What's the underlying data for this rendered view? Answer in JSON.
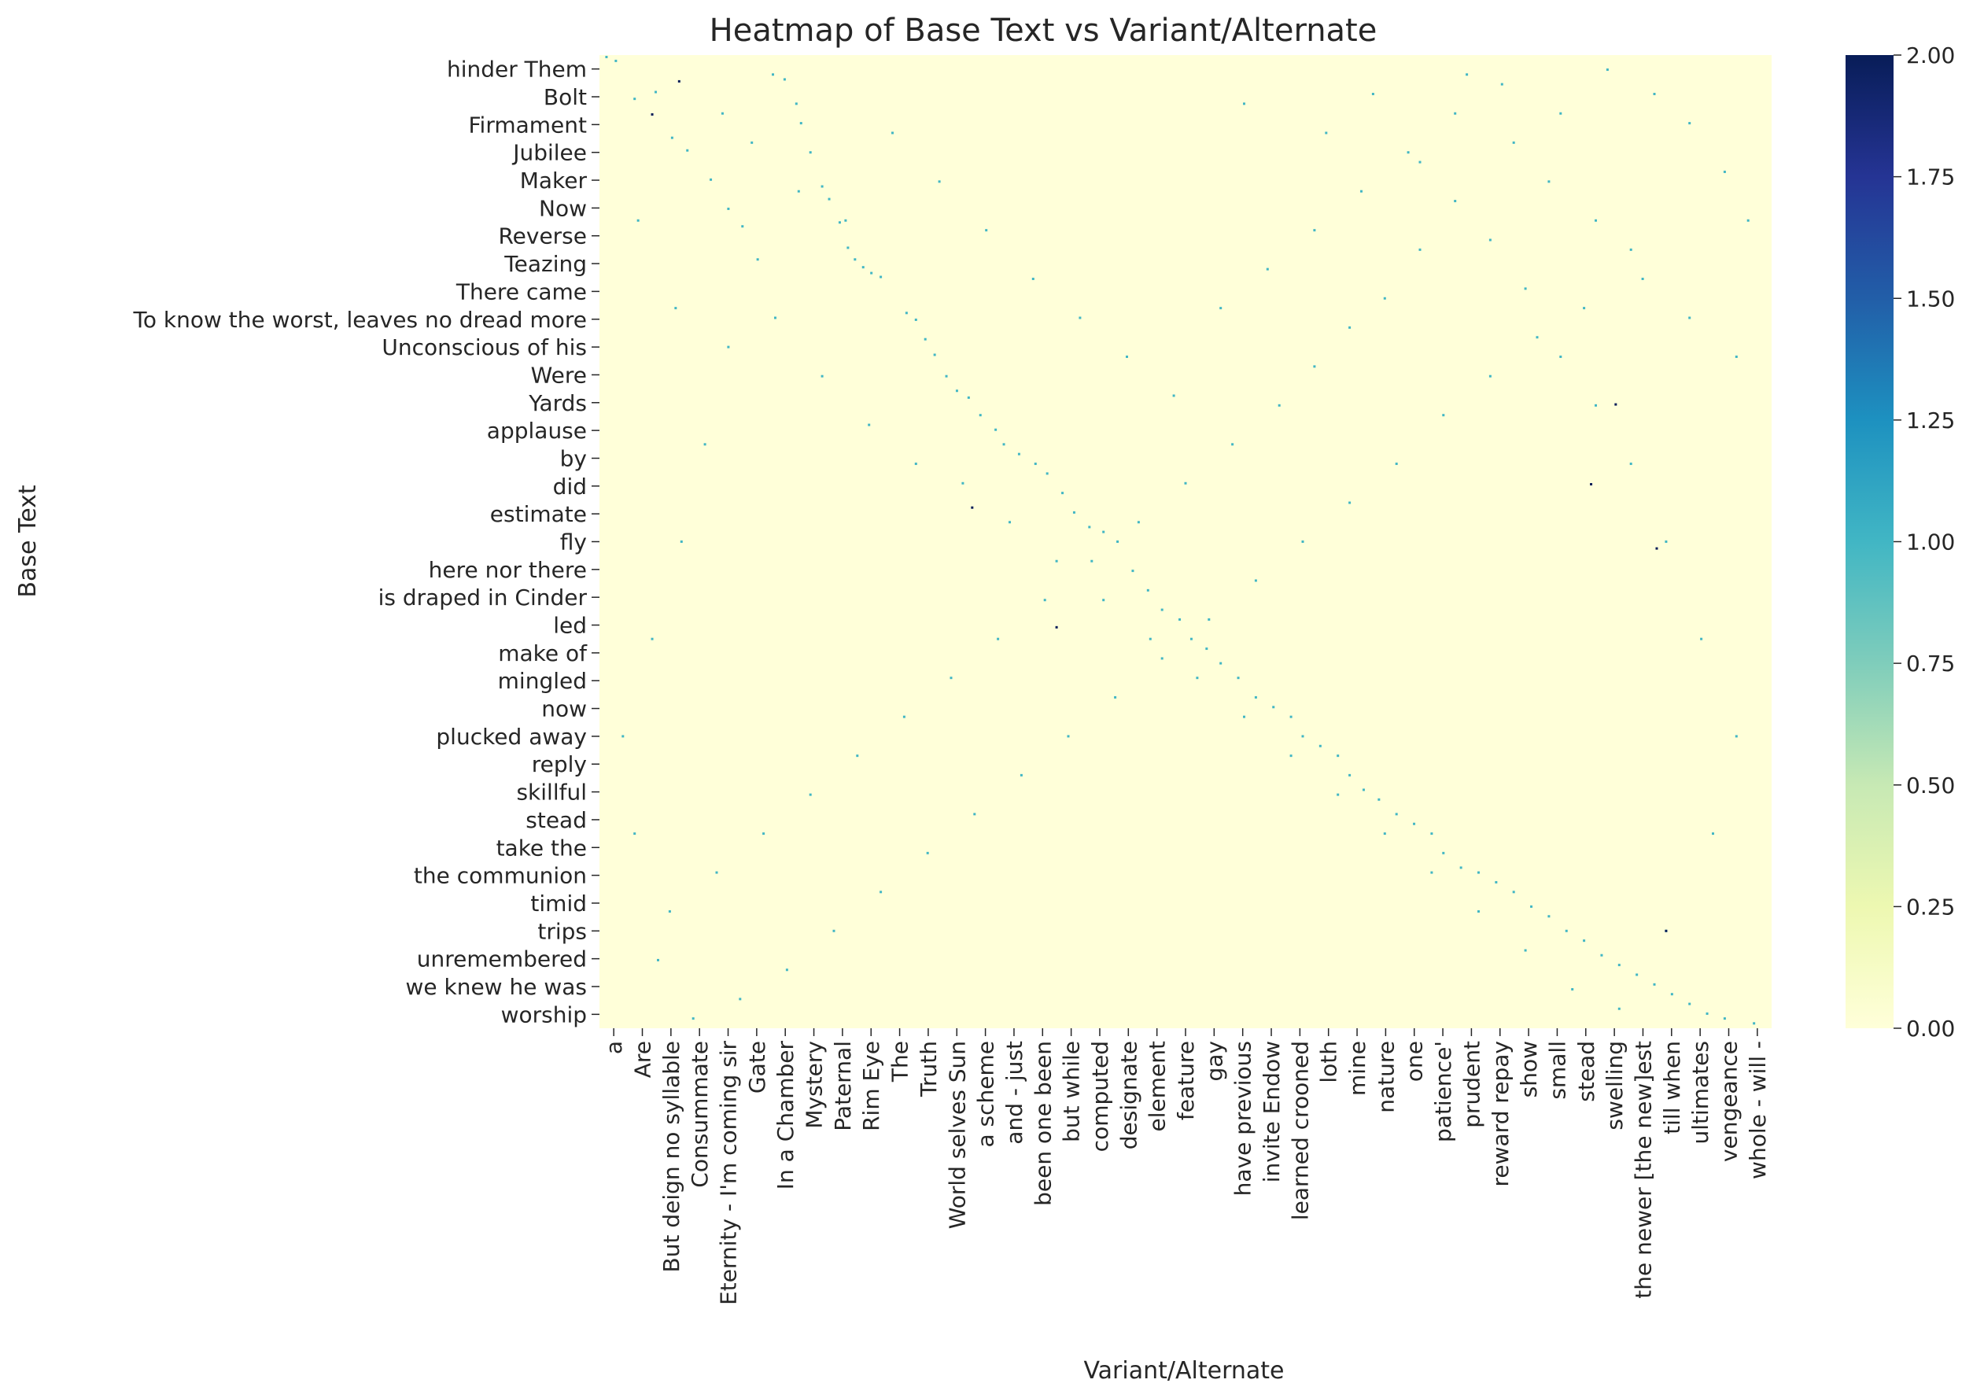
{
  "chart_data": {
    "type": "heatmap",
    "title": "Heatmap of Base Text vs Variant/Alternate",
    "xlabel": "Variant/Alternate",
    "ylabel": "Base Text",
    "y_tick_labels": [
      "hinder Them",
      "Bolt",
      "Firmament",
      "Jubilee",
      "Maker",
      "Now",
      "Reverse",
      "Teazing",
      "There came",
      "To know the worst, leaves no dread more",
      "Unconscious of his",
      "Were",
      "Yards",
      "applause ",
      "by",
      "did",
      "estimate",
      "fly",
      "here nor there",
      "is draped in Cinder",
      "led",
      "make of",
      "mingled",
      "now",
      "plucked away",
      "reply",
      "skillful",
      "stead",
      "take the",
      "the communion",
      "timid",
      "trips",
      "unremembered",
      "we knew he was",
      "worship"
    ],
    "x_tick_labels": [
      "a",
      "Are",
      "But deign no syllable",
      "Consummate",
      "Eternity - I'm coming sir",
      "Gate",
      "In a Chamber",
      "Mystery",
      "Paternal",
      "Rim Eye",
      "The",
      "Truth",
      "World selves Sun",
      "a scheme",
      "and - just",
      "been one been",
      "but while",
      "computed",
      "designate",
      "element",
      "feature",
      "gay",
      "have previous",
      "invite Endow",
      "learned crooned",
      "loth",
      "mine",
      "nature",
      "one",
      "patience'",
      "prudent",
      "reward repay",
      "show",
      "small",
      "stead",
      "swelling",
      "the newer [the new]est",
      "till when",
      "ultimates",
      "vengeance",
      "whole - will -"
    ],
    "colorbar": {
      "cmap": "YlGnBu",
      "range": [
        0,
        2
      ],
      "ticks": [
        "0.00",
        "0.25",
        "0.50",
        "0.75",
        "1.00",
        "1.25",
        "1.50",
        "1.75",
        "2.00"
      ]
    },
    "value_range": [
      0,
      2
    ],
    "grid": false,
    "background_value": 0,
    "cells_note": "sparse matrix: nearly all cells 0; scattered cells of value 1, a few of value 2",
    "cells": [
      [
        0.006,
        0.002,
        1
      ],
      [
        0.014,
        0.006,
        1
      ],
      [
        0.03,
        0.045,
        1
      ],
      [
        0.048,
        0.038,
        1
      ],
      [
        0.062,
        0.085,
        1
      ],
      [
        0.075,
        0.098,
        1
      ],
      [
        0.095,
        0.128,
        1
      ],
      [
        0.105,
        0.06,
        1
      ],
      [
        0.11,
        0.158,
        1
      ],
      [
        0.122,
        0.176,
        1
      ],
      [
        0.135,
        0.21,
        1
      ],
      [
        0.148,
        0.02,
        1
      ],
      [
        0.158,
        0.025,
        1
      ],
      [
        0.168,
        0.05,
        1
      ],
      [
        0.172,
        0.07,
        1
      ],
      [
        0.18,
        0.1,
        1
      ],
      [
        0.19,
        0.135,
        1
      ],
      [
        0.196,
        0.148,
        1
      ],
      [
        0.205,
        0.172,
        1
      ],
      [
        0.212,
        0.198,
        1
      ],
      [
        0.218,
        0.21,
        1
      ],
      [
        0.225,
        0.218,
        1
      ],
      [
        0.232,
        0.224,
        1
      ],
      [
        0.24,
        0.228,
        1
      ],
      [
        0.262,
        0.265,
        1
      ],
      [
        0.27,
        0.272,
        1
      ],
      [
        0.278,
        0.292,
        1
      ],
      [
        0.286,
        0.308,
        1
      ],
      [
        0.296,
        0.33,
        1
      ],
      [
        0.305,
        0.345,
        1
      ],
      [
        0.315,
        0.352,
        1
      ],
      [
        0.325,
        0.37,
        1
      ],
      [
        0.338,
        0.385,
        1
      ],
      [
        0.345,
        0.4,
        1
      ],
      [
        0.358,
        0.41,
        1
      ],
      [
        0.372,
        0.42,
        1
      ],
      [
        0.382,
        0.43,
        1
      ],
      [
        0.395,
        0.45,
        1
      ],
      [
        0.405,
        0.47,
        1
      ],
      [
        0.418,
        0.485,
        1
      ],
      [
        0.43,
        0.49,
        1
      ],
      [
        0.442,
        0.5,
        1
      ],
      [
        0.455,
        0.53,
        1
      ],
      [
        0.468,
        0.55,
        1
      ],
      [
        0.48,
        0.57,
        1
      ],
      [
        0.495,
        0.58,
        1
      ],
      [
        0.505,
        0.6,
        1
      ],
      [
        0.518,
        0.61,
        1
      ],
      [
        0.53,
        0.625,
        1
      ],
      [
        0.545,
        0.64,
        1
      ],
      [
        0.56,
        0.66,
        1
      ],
      [
        0.575,
        0.67,
        1
      ],
      [
        0.59,
        0.68,
        1
      ],
      [
        0.6,
        0.7,
        1
      ],
      [
        0.615,
        0.71,
        1
      ],
      [
        0.63,
        0.72,
        1
      ],
      [
        0.64,
        0.74,
        1
      ],
      [
        0.652,
        0.755,
        1
      ],
      [
        0.665,
        0.765,
        1
      ],
      [
        0.68,
        0.78,
        1
      ],
      [
        0.695,
        0.79,
        1
      ],
      [
        0.71,
        0.8,
        1
      ],
      [
        0.72,
        0.82,
        1
      ],
      [
        0.735,
        0.835,
        1
      ],
      [
        0.75,
        0.84,
        1
      ],
      [
        0.765,
        0.85,
        1
      ],
      [
        0.78,
        0.86,
        1
      ],
      [
        0.795,
        0.875,
        1
      ],
      [
        0.81,
        0.885,
        1
      ],
      [
        0.825,
        0.9,
        1
      ],
      [
        0.84,
        0.91,
        1
      ],
      [
        0.855,
        0.925,
        1
      ],
      [
        0.87,
        0.935,
        1
      ],
      [
        0.885,
        0.945,
        1
      ],
      [
        0.9,
        0.955,
        1
      ],
      [
        0.915,
        0.965,
        1
      ],
      [
        0.93,
        0.975,
        1
      ],
      [
        0.945,
        0.985,
        1
      ],
      [
        0.96,
        0.99,
        1
      ],
      [
        0.985,
        0.995,
        1
      ],
      [
        0.55,
        0.05,
        1
      ],
      [
        0.62,
        0.08,
        1
      ],
      [
        0.66,
        0.04,
        1
      ],
      [
        0.7,
        0.11,
        1
      ],
      [
        0.74,
        0.02,
        1
      ],
      [
        0.78,
        0.09,
        1
      ],
      [
        0.82,
        0.06,
        1
      ],
      [
        0.86,
        0.015,
        1
      ],
      [
        0.9,
        0.04,
        1
      ],
      [
        0.93,
        0.07,
        1
      ],
      [
        0.96,
        0.12,
        1
      ],
      [
        0.98,
        0.17,
        1
      ],
      [
        0.88,
        0.2,
        1
      ],
      [
        0.84,
        0.26,
        1
      ],
      [
        0.8,
        0.29,
        1
      ],
      [
        0.76,
        0.33,
        1
      ],
      [
        0.72,
        0.37,
        1
      ],
      [
        0.68,
        0.42,
        1
      ],
      [
        0.64,
        0.46,
        1
      ],
      [
        0.6,
        0.5,
        1
      ],
      [
        0.56,
        0.54,
        1
      ],
      [
        0.52,
        0.58,
        1
      ],
      [
        0.48,
        0.62,
        1
      ],
      [
        0.44,
        0.66,
        1
      ],
      [
        0.4,
        0.7,
        1
      ],
      [
        0.36,
        0.74,
        1
      ],
      [
        0.32,
        0.78,
        1
      ],
      [
        0.28,
        0.82,
        1
      ],
      [
        0.24,
        0.86,
        1
      ],
      [
        0.2,
        0.9,
        1
      ],
      [
        0.16,
        0.94,
        1
      ],
      [
        0.12,
        0.97,
        1
      ],
      [
        0.08,
        0.99,
        1
      ],
      [
        0.05,
        0.93,
        1
      ],
      [
        0.03,
        0.8,
        1
      ],
      [
        0.02,
        0.7,
        1
      ],
      [
        0.045,
        0.6,
        1
      ],
      [
        0.07,
        0.5,
        1
      ],
      [
        0.09,
        0.4,
        1
      ],
      [
        0.11,
        0.3,
        1
      ],
      [
        0.15,
        0.27,
        1
      ],
      [
        0.19,
        0.33,
        1
      ],
      [
        0.23,
        0.38,
        1
      ],
      [
        0.27,
        0.42,
        1
      ],
      [
        0.31,
        0.44,
        1
      ],
      [
        0.35,
        0.48,
        1
      ],
      [
        0.39,
        0.52,
        1
      ],
      [
        0.43,
        0.56,
        1
      ],
      [
        0.47,
        0.6,
        1
      ],
      [
        0.51,
        0.64,
        1
      ],
      [
        0.55,
        0.68,
        1
      ],
      [
        0.59,
        0.72,
        1
      ],
      [
        0.63,
        0.76,
        1
      ],
      [
        0.67,
        0.8,
        1
      ],
      [
        0.71,
        0.84,
        1
      ],
      [
        0.75,
        0.88,
        1
      ],
      [
        0.79,
        0.92,
        1
      ],
      [
        0.83,
        0.96,
        1
      ],
      [
        0.87,
        0.98,
        1
      ],
      [
        0.91,
        0.9,
        1
      ],
      [
        0.95,
        0.8,
        1
      ],
      [
        0.97,
        0.7,
        1
      ],
      [
        0.94,
        0.6,
        1
      ],
      [
        0.91,
        0.5,
        1
      ],
      [
        0.88,
        0.42,
        1
      ],
      [
        0.85,
        0.36,
        1
      ],
      [
        0.82,
        0.31,
        1
      ],
      [
        0.79,
        0.24,
        1
      ],
      [
        0.76,
        0.19,
        1
      ],
      [
        0.73,
        0.15,
        1
      ],
      [
        0.7,
        0.2,
        1
      ],
      [
        0.67,
        0.25,
        1
      ],
      [
        0.64,
        0.28,
        1
      ],
      [
        0.61,
        0.32,
        1
      ],
      [
        0.58,
        0.36,
        1
      ],
      [
        0.54,
        0.4,
        1
      ],
      [
        0.5,
        0.44,
        1
      ],
      [
        0.46,
        0.48,
        1
      ],
      [
        0.42,
        0.52,
        1
      ],
      [
        0.38,
        0.56,
        1
      ],
      [
        0.34,
        0.6,
        1
      ],
      [
        0.3,
        0.64,
        1
      ],
      [
        0.26,
        0.68,
        1
      ],
      [
        0.22,
        0.72,
        1
      ],
      [
        0.18,
        0.76,
        1
      ],
      [
        0.14,
        0.8,
        1
      ],
      [
        0.1,
        0.84,
        1
      ],
      [
        0.06,
        0.88,
        1
      ],
      [
        0.033,
        0.17,
        1
      ],
      [
        0.065,
        0.26,
        1
      ],
      [
        0.13,
        0.09,
        1
      ],
      [
        0.17,
        0.14,
        1
      ],
      [
        0.21,
        0.17,
        1
      ],
      [
        0.25,
        0.08,
        1
      ],
      [
        0.29,
        0.13,
        1
      ],
      [
        0.33,
        0.18,
        1
      ],
      [
        0.37,
        0.23,
        1
      ],
      [
        0.41,
        0.27,
        1
      ],
      [
        0.45,
        0.31,
        1
      ],
      [
        0.49,
        0.35,
        1
      ],
      [
        0.53,
        0.26,
        1
      ],
      [
        0.57,
        0.22,
        1
      ],
      [
        0.61,
        0.18,
        1
      ],
      [
        0.65,
        0.14,
        1
      ],
      [
        0.69,
        0.1,
        1
      ],
      [
        0.73,
        0.06,
        1
      ],
      [
        0.77,
        0.03,
        1
      ],
      [
        0.81,
        0.13,
        1
      ],
      [
        0.85,
        0.17,
        1
      ],
      [
        0.89,
        0.23,
        1
      ],
      [
        0.93,
        0.27,
        1
      ],
      [
        0.97,
        0.31,
        1
      ],
      [
        0.068,
        0.027,
        2
      ],
      [
        0.045,
        0.061,
        2
      ],
      [
        0.318,
        0.465,
        2
      ],
      [
        0.39,
        0.588,
        2
      ],
      [
        0.867,
        0.359,
        2
      ],
      [
        0.846,
        0.441,
        2
      ],
      [
        0.902,
        0.507,
        2
      ],
      [
        0.91,
        0.9,
        2
      ]
    ]
  }
}
